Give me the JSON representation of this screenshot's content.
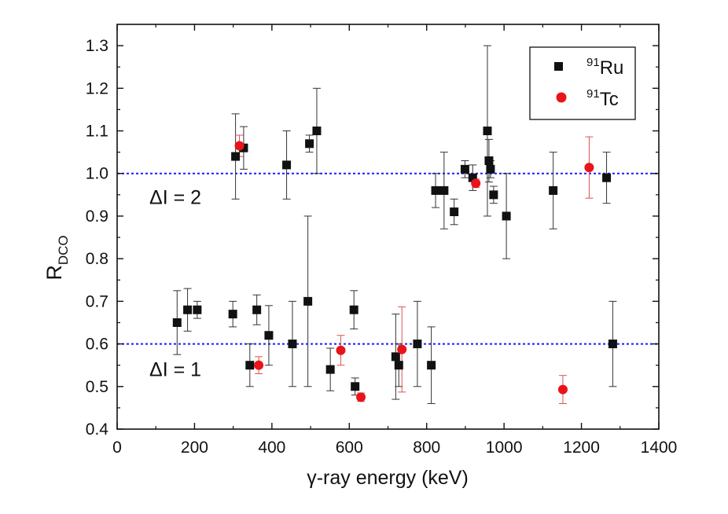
{
  "chart_data": {
    "type": "scatter",
    "xlabel": "γ-ray energy  (keV)",
    "ylabel_main": "R",
    "ylabel_sub": "DCO",
    "xlim": [
      0,
      1400
    ],
    "ylim": [
      0.4,
      1.35
    ],
    "xticks": [
      0,
      200,
      400,
      600,
      800,
      1000,
      1200,
      1400
    ],
    "yticks": [
      0.4,
      0.5,
      0.6,
      0.7,
      0.8,
      0.9,
      1.0,
      1.1,
      1.2,
      1.3
    ],
    "ytick_labels": [
      "0.4",
      "0.5",
      "0.6",
      "0.7",
      "0.8",
      "0.9",
      "1.0",
      "1.1",
      "1.2",
      "1.3"
    ],
    "reference_lines": [
      {
        "y": 1.0,
        "label": "ΔI = 2",
        "color": "#1a1aff"
      },
      {
        "y": 0.6,
        "label": "ΔI = 1",
        "color": "#1a1aff"
      }
    ],
    "legend_position": "top-right",
    "series": [
      {
        "name_mass": "91",
        "name_symbol": "Ru",
        "marker": "square",
        "color": "#111111",
        "error_color": "#333333",
        "points": [
          {
            "x": 155,
            "y": 0.65,
            "lo": 0.575,
            "hi": 0.725
          },
          {
            "x": 182,
            "y": 0.68,
            "lo": 0.63,
            "hi": 0.73
          },
          {
            "x": 207,
            "y": 0.68,
            "lo": 0.66,
            "hi": 0.7
          },
          {
            "x": 299,
            "y": 0.67,
            "lo": 0.64,
            "hi": 0.7
          },
          {
            "x": 306,
            "y": 1.04,
            "lo": 0.94,
            "hi": 1.14
          },
          {
            "x": 327,
            "y": 1.06,
            "lo": 1.01,
            "hi": 1.11
          },
          {
            "x": 343,
            "y": 0.55,
            "lo": 0.5,
            "hi": 0.6
          },
          {
            "x": 361,
            "y": 0.68,
            "lo": 0.645,
            "hi": 0.715
          },
          {
            "x": 392,
            "y": 0.62,
            "lo": 0.55,
            "hi": 0.69
          },
          {
            "x": 438,
            "y": 1.02,
            "lo": 0.94,
            "hi": 1.1
          },
          {
            "x": 453,
            "y": 0.6,
            "lo": 0.5,
            "hi": 0.7
          },
          {
            "x": 493,
            "y": 0.7,
            "lo": 0.5,
            "hi": 0.9
          },
          {
            "x": 497,
            "y": 1.07,
            "lo": 1.05,
            "hi": 1.09
          },
          {
            "x": 516,
            "y": 1.1,
            "lo": 1.0,
            "hi": 1.2
          },
          {
            "x": 551,
            "y": 0.54,
            "lo": 0.49,
            "hi": 0.59
          },
          {
            "x": 612,
            "y": 0.68,
            "lo": 0.635,
            "hi": 0.725
          },
          {
            "x": 615,
            "y": 0.5,
            "lo": 0.48,
            "hi": 0.52
          },
          {
            "x": 720,
            "y": 0.57,
            "lo": 0.47,
            "hi": 0.67
          },
          {
            "x": 728,
            "y": 0.55,
            "lo": 0.5,
            "hi": 0.6
          },
          {
            "x": 776,
            "y": 0.6,
            "lo": 0.5,
            "hi": 0.7
          },
          {
            "x": 812,
            "y": 0.55,
            "lo": 0.46,
            "hi": 0.64
          },
          {
            "x": 823,
            "y": 0.96,
            "lo": 0.92,
            "hi": 1.0
          },
          {
            "x": 845,
            "y": 0.96,
            "lo": 0.87,
            "hi": 1.05
          },
          {
            "x": 871,
            "y": 0.91,
            "lo": 0.88,
            "hi": 0.94
          },
          {
            "x": 899,
            "y": 1.01,
            "lo": 0.99,
            "hi": 1.03
          },
          {
            "x": 919,
            "y": 0.99,
            "lo": 0.96,
            "hi": 1.02
          },
          {
            "x": 957,
            "y": 1.1,
            "lo": 0.9,
            "hi": 1.3
          },
          {
            "x": 961,
            "y": 1.03,
            "lo": 0.98,
            "hi": 1.08
          },
          {
            "x": 965,
            "y": 1.01,
            "lo": 0.99,
            "hi": 1.03
          },
          {
            "x": 973,
            "y": 0.95,
            "lo": 0.93,
            "hi": 0.97
          },
          {
            "x": 1006,
            "y": 0.9,
            "lo": 0.8,
            "hi": 1.0
          },
          {
            "x": 1127,
            "y": 0.96,
            "lo": 0.87,
            "hi": 1.05
          },
          {
            "x": 1265,
            "y": 0.99,
            "lo": 0.93,
            "hi": 1.05
          },
          {
            "x": 1281,
            "y": 0.6,
            "lo": 0.5,
            "hi": 0.7
          }
        ]
      },
      {
        "name_mass": "91",
        "name_symbol": "Tc",
        "marker": "circle",
        "color": "#e8141a",
        "error_color": "#e05050",
        "points": [
          {
            "x": 316,
            "y": 1.065,
            "lo": 1.04,
            "hi": 1.09
          },
          {
            "x": 366,
            "y": 0.55,
            "lo": 0.53,
            "hi": 0.57
          },
          {
            "x": 578,
            "y": 0.585,
            "lo": 0.55,
            "hi": 0.62
          },
          {
            "x": 630,
            "y": 0.475,
            "lo": 0.465,
            "hi": 0.485
          },
          {
            "x": 927,
            "y": 0.977,
            "lo": 0.967,
            "hi": 0.987
          },
          {
            "x": 736,
            "y": 0.587,
            "lo": 0.487,
            "hi": 0.687
          },
          {
            "x": 1152,
            "y": 0.493,
            "lo": 0.46,
            "hi": 0.526
          },
          {
            "x": 1220,
            "y": 1.014,
            "lo": 0.942,
            "hi": 1.086
          }
        ]
      }
    ]
  }
}
